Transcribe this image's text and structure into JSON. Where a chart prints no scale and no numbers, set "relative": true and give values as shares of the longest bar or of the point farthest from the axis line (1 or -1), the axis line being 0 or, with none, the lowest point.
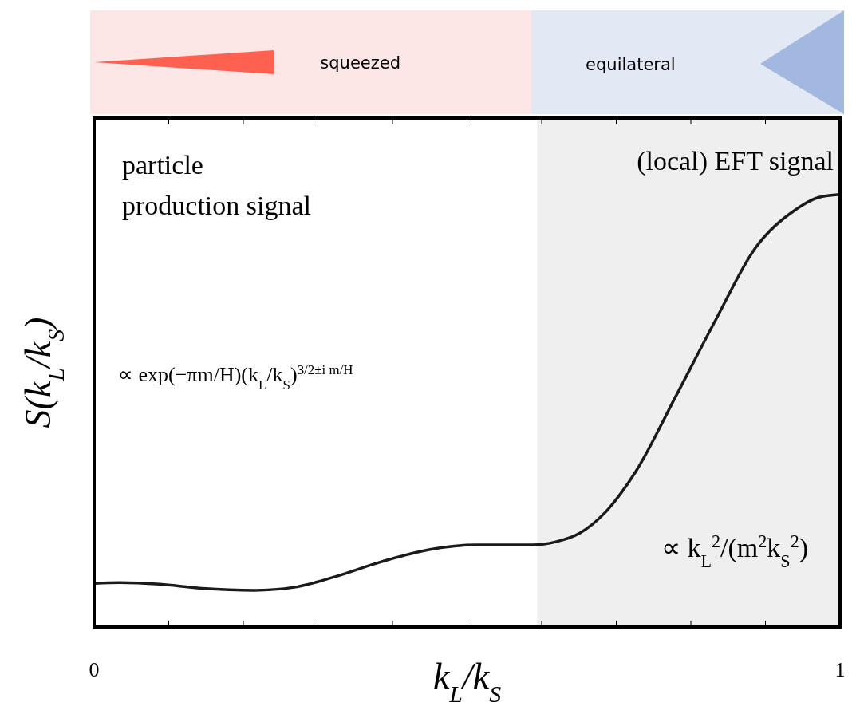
{
  "chart_data": {
    "type": "line",
    "relative": true,
    "xlabel": "k$_{L}$/k$_{S}$",
    "ylabel": "S(k$_{L}$/k$_{S}$)",
    "xlim": [
      0,
      1
    ],
    "xticks": [
      0,
      {
        "value": 0.1,
        "label": null
      },
      {
        "value": 0.2,
        "label": null
      },
      {
        "value": 0.3,
        "label": null
      },
      {
        "value": 0.4,
        "label": null
      },
      {
        "value": 0.5,
        "label": null
      },
      {
        "value": 0.6,
        "label": null
      },
      {
        "value": 0.7,
        "label": null
      },
      {
        "value": 0.8,
        "label": null
      },
      {
        "value": 0.9,
        "label": null
      },
      1
    ],
    "x": [
      0,
      0.035,
      0.088,
      0.141,
      0.215,
      0.268,
      0.322,
      0.385,
      0.449,
      0.513,
      0.588,
      0.619,
      0.651,
      0.684,
      0.726,
      0.78,
      0.833,
      0.886,
      0.939,
      0.971,
      1
    ],
    "series": [
      {
        "color": "#1a1a1a",
        "values": [
          0.101,
          0.103,
          0.099,
          0.09,
          0.085,
          0.092,
          0.116,
          0.151,
          0.179,
          0.19,
          0.19,
          0.197,
          0.217,
          0.263,
          0.359,
          0.534,
          0.709,
          0.875,
          0.963,
          0.993,
          1
        ]
      }
    ],
    "bands": [
      {
        "axis": "x",
        "from": 0.594,
        "to": 1,
        "label": "(local) EFT signal",
        "color": "#efefef"
      }
    ],
    "annotations": [
      "squeezed",
      "equilateral",
      "particle\nproduction signal",
      "∝ exp(−πm/H)(k$_{L}$/k$_{S}$)$^{3/2±i m/H}$",
      "∝ k$_{L}$$^{2}$/(m$^{2}$k$_{S}$$^{2}$)"
    ],
    "grid": false,
    "line_style": "solid"
  }
}
